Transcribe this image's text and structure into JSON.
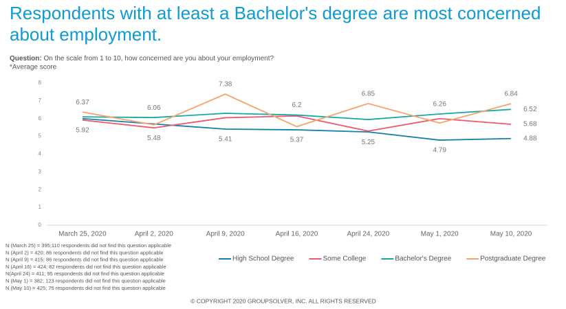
{
  "chart_data": {
    "type": "line",
    "title": "Respondents with at least a Bachelor's degree are most concerned about employment.",
    "question_label": "Question:",
    "question": "On the scale from 1 to 10, how concerned are you about your employment?",
    "subtitle": "*Average score",
    "categories": [
      "March 25, 2020",
      "April 2, 2020",
      "April 9, 2020",
      "April 16, 2020",
      "April 24, 2020",
      "May 1, 2020",
      "May 10, 2020"
    ],
    "ylim": [
      0,
      8
    ],
    "yticks": [
      0,
      1,
      2,
      3,
      4,
      5,
      6,
      7,
      8
    ],
    "grid": false,
    "series": [
      {
        "name": "High School Degree",
        "color": "#1380ad",
        "values": [
          6.0,
          5.7,
          5.41,
          5.37,
          5.25,
          4.79,
          4.88
        ],
        "value_labels": [
          null,
          null,
          "5.41",
          "5.37",
          "5.25",
          "4.79",
          "4.88"
        ]
      },
      {
        "name": "Some College",
        "color": "#f0566f",
        "values": [
          5.92,
          5.48,
          6.05,
          6.15,
          5.3,
          6.0,
          5.68
        ],
        "value_labels": [
          "5.92",
          "5.48",
          null,
          null,
          null,
          null,
          "5.68"
        ]
      },
      {
        "name": "Bachelor's Degree",
        "color": "#17a8a6",
        "values": [
          6.1,
          6.06,
          6.3,
          6.2,
          5.95,
          6.26,
          6.52
        ],
        "value_labels": [
          null,
          "6.06",
          null,
          "6.2",
          null,
          "6.26",
          "6.52"
        ]
      },
      {
        "name": "Postgraduate Degree",
        "color": "#f6a26a",
        "values": [
          6.37,
          5.65,
          7.38,
          5.55,
          6.85,
          5.75,
          6.84
        ],
        "value_labels": [
          "6.37",
          null,
          "7.38",
          null,
          "6.85",
          null,
          "6.84"
        ]
      }
    ],
    "notes": [
      "N (March 25) = 395;110 respondents did not find this question applicable",
      "N (April 2) = 420; 86 respondents did not find this question applicable",
      "N (April 9) = 415; 86 respondents did not find this question applicable",
      "N (April 16) = 424; 82 respondents did not find this question applicable",
      "N(April 24) = 411; 95 respondents did not find this question applicable",
      "N (May 1) = 382; 123 respondents did not find this question applicable",
      "N (May 10) = 425; 75 respondents did not find this question applicable"
    ],
    "copyright": "© COPYRIGHT 2020 GROUPSOLVER, INC. ALL RIGHTS RESERVED"
  }
}
